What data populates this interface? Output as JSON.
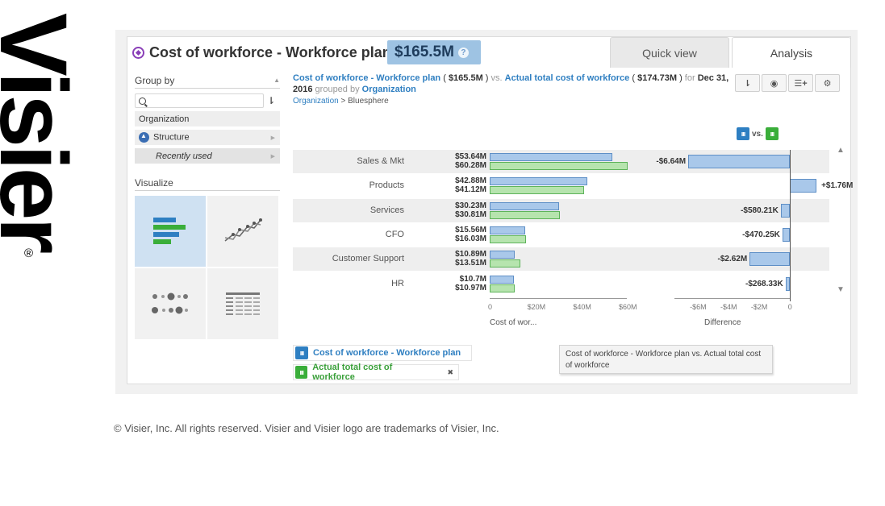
{
  "brand": {
    "logo_text": "Visier",
    "registered_mark": "®"
  },
  "header": {
    "metric_title": "Cost of workforce - Workforce plan",
    "metric_value": "$165.5M",
    "help_glyph": "?",
    "tabs": [
      {
        "label": "Quick view"
      },
      {
        "label": "Analysis"
      }
    ]
  },
  "left_panel": {
    "group_by_label": "Group by",
    "search_placeholder": "",
    "items": [
      {
        "label": "Organization"
      },
      {
        "label": "Structure"
      },
      {
        "label": "Recently used"
      }
    ],
    "visualize_label": "Visualize",
    "visualizations": [
      {
        "name": "bar-chart-icon",
        "selected": true
      },
      {
        "name": "line-chart-icon",
        "selected": false
      },
      {
        "name": "bubble-chart-icon",
        "selected": false
      },
      {
        "name": "table-icon",
        "selected": false
      }
    ]
  },
  "headline": {
    "metric_a": "Cost of workforce - Workforce plan",
    "value_a": "$165.5M",
    "vs": "vs.",
    "metric_b": "Actual total cost of workforce",
    "value_b": "$174.73M",
    "for_text": "for",
    "date": "Dec 31, 2016",
    "grouped_by": "grouped by",
    "grouping": "Organization",
    "breadcrumb_root": "Organization",
    "breadcrumb_sep": ">",
    "breadcrumb_leaf": "Bluesphere"
  },
  "toolbar": {
    "sort_glyph": "⇂",
    "view_glyph": "◉",
    "add_glyph": "☰+",
    "settings_glyph": "⚙"
  },
  "legend_vs": "vs.",
  "chart_data": {
    "type": "bar",
    "categories": [
      "Sales & Mkt",
      "Products",
      "Services",
      "CFO",
      "Customer Support",
      "HR"
    ],
    "series": [
      {
        "name": "Cost of workforce - Workforce plan",
        "values": [
          53.64,
          42.88,
          30.23,
          15.56,
          10.89,
          10.7
        ],
        "labels": [
          "$53.64M",
          "$42.88M",
          "$30.23M",
          "$15.56M",
          "$10.89M",
          "$10.7M"
        ],
        "color": "#a9c8ea"
      },
      {
        "name": "Actual total cost of workforce",
        "values": [
          60.28,
          41.12,
          30.81,
          16.03,
          13.51,
          10.97
        ],
        "labels": [
          "$60.28M",
          "$41.12M",
          "$30.81M",
          "$16.03M",
          "$13.51M",
          "$10.97M"
        ],
        "color": "#b6e4ae"
      }
    ],
    "difference": {
      "values": [
        -6.64,
        1.76,
        -0.58021,
        -0.47025,
        -2.62,
        -0.26833
      ],
      "labels": [
        "-$6.64M",
        "+$1.76M",
        "-$580.21K",
        "-$470.25K",
        "-$2.62M",
        "-$268.33K"
      ]
    },
    "left_axis": {
      "ticks": [
        "0",
        "$20M",
        "$40M",
        "$60M"
      ],
      "tick_values": [
        0,
        20,
        40,
        60
      ],
      "title": "Cost of wor...",
      "range": [
        0,
        60
      ]
    },
    "right_axis": {
      "ticks": [
        "-$6M",
        "-$4M",
        "-$2M",
        "0"
      ],
      "tick_values": [
        -6,
        -4,
        -2,
        0
      ],
      "title": "Difference",
      "range": [
        -7.7,
        2.6
      ]
    }
  },
  "legend": [
    {
      "label": "Cost of workforce - Workforce plan",
      "color": "#2e7fc2"
    },
    {
      "label": "Actual total cost of workforce",
      "color": "#3aae3a",
      "close": "✖"
    }
  ],
  "tooltip": "Cost of workforce - Workforce plan vs. Actual total cost of workforce",
  "copyright": "© Visier, Inc. All rights reserved. Visier and Visier logo are trademarks of Visier, Inc."
}
